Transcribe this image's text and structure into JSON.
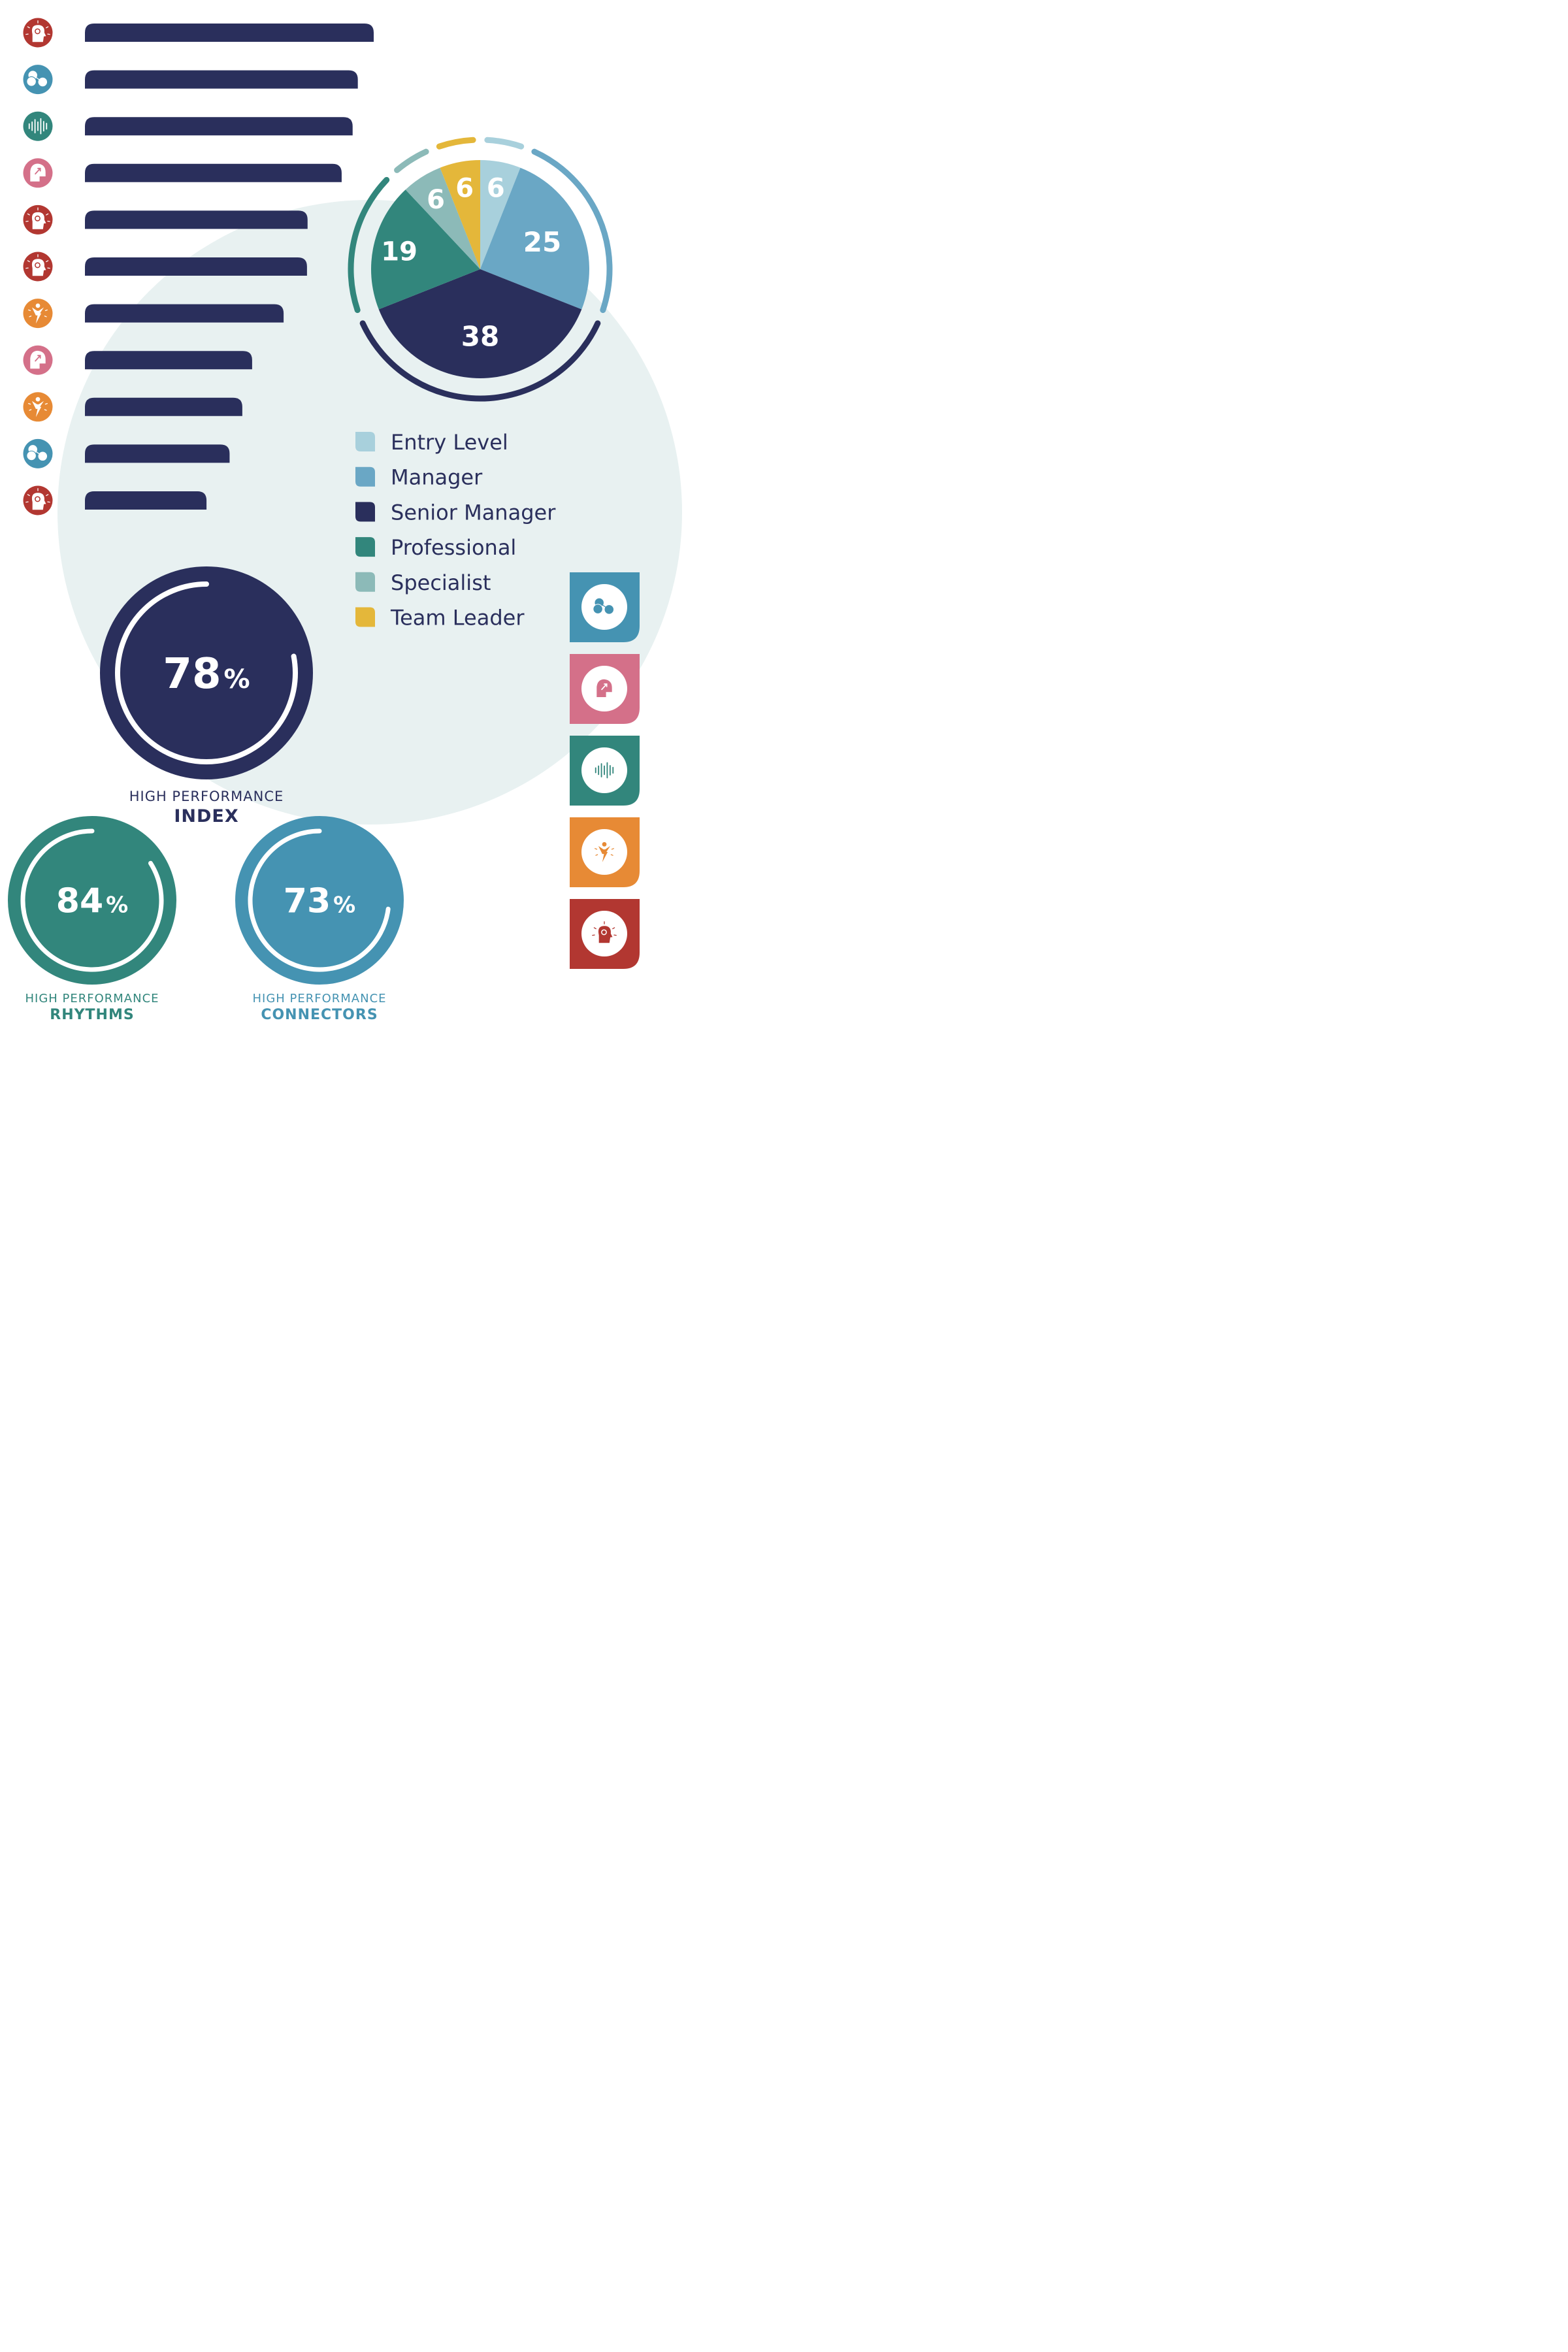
{
  "colors": {
    "navy": "#2a2f5c",
    "teal": "#32867c",
    "blue": "#4593b2",
    "light_blue": "#a8d0dc",
    "mid_blue": "#6aa7c5",
    "sage": "#8cbab8",
    "yellow": "#e4b73a",
    "red": "#b23731",
    "pink": "#d47089",
    "orange": "#e78a35",
    "bg_circle": "#e8f1f1"
  },
  "bar_icons": [
    "bulb-head-icon",
    "masks-icon",
    "soundwave-icon",
    "head-arrow-icon",
    "bulb-head-icon",
    "bulb-head-icon",
    "energy-figure-icon",
    "head-arrow-icon",
    "energy-figure-icon",
    "masks-icon",
    "bulb-head-icon"
  ],
  "bar_icon_colors": [
    "red",
    "blue",
    "teal",
    "pink",
    "red",
    "red",
    "orange",
    "pink",
    "orange",
    "blue",
    "red"
  ],
  "side_icons": [
    {
      "icon": "masks-icon",
      "color": "blue"
    },
    {
      "icon": "head-arrow-icon",
      "color": "pink"
    },
    {
      "icon": "soundwave-icon",
      "color": "teal"
    },
    {
      "icon": "energy-figure-icon",
      "color": "orange"
    },
    {
      "icon": "bulb-head-icon",
      "color": "red"
    }
  ],
  "chart_data": [
    {
      "type": "bar",
      "orientation": "horizontal",
      "values": [
        100,
        94.5,
        92.7,
        88.9,
        77.1,
        76.9,
        68.8,
        57.9,
        54.5,
        50.1,
        42.1
      ],
      "xlim": [
        0,
        100
      ]
    },
    {
      "type": "pie",
      "categories": [
        "Entry Level",
        "Manager",
        "Senior Manager",
        "Professional",
        "Specialist",
        "Team Leader"
      ],
      "values": [
        6,
        25,
        38,
        19,
        6,
        6
      ],
      "slice_colors": [
        "light_blue",
        "mid_blue",
        "navy",
        "teal",
        "sage",
        "yellow"
      ],
      "legend_position": "below"
    },
    {
      "type": "gauge",
      "value": 78,
      "unit": "%",
      "label_top": "HIGH PERFORMANCE",
      "label_bottom": "INDEX",
      "color": "navy"
    },
    {
      "type": "gauge",
      "value": 84,
      "unit": "%",
      "label_top": "HIGH PERFORMANCE",
      "label_bottom": "RHYTHMS",
      "color": "teal"
    },
    {
      "type": "gauge",
      "value": 73,
      "unit": "%",
      "label_top": "HIGH PERFORMANCE",
      "label_bottom": "CONNECTORS",
      "color": "blue"
    }
  ]
}
